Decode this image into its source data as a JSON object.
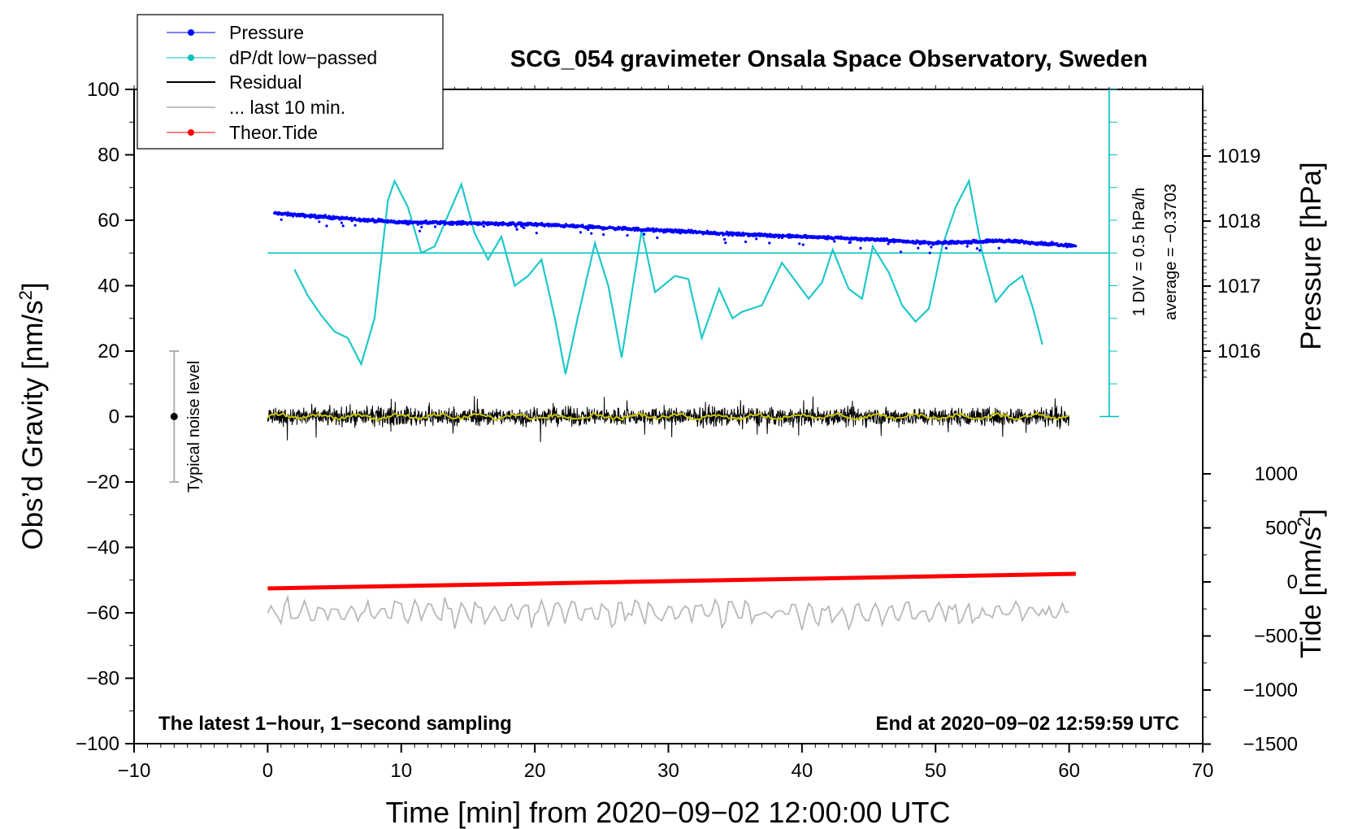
{
  "chart_data": {
    "type": "line",
    "title": "SCG_054 gravimeter Onsala Space Observatory, Sweden",
    "xlabel": "Time [min] from 2020−09−02 12:00:00 UTC",
    "ylabel": "Obs’d Gravity [nm/s",
    "ylabel_sup": "2",
    "ylabel_close": "]",
    "xlim": [
      -10,
      70
    ],
    "ylim": [
      -100,
      100
    ],
    "x_ticks": [
      "−10",
      "0",
      "10",
      "20",
      "30",
      "40",
      "50",
      "60",
      "70"
    ],
    "y_ticks": [
      "100",
      "80",
      "60",
      "40",
      "20",
      "0",
      "−20",
      "−40",
      "−60",
      "−80",
      "−100"
    ],
    "pressure_axis": {
      "label": "Pressure [hPa]",
      "ticks": [
        "1019",
        "1018",
        "1017",
        "1016"
      ],
      "tick_values": [
        1019,
        1018,
        1017,
        1016
      ]
    },
    "tide_axis": {
      "label": "Tide [nm/s",
      "label_sup": "2",
      "label_close": "]",
      "ticks": [
        "1000",
        "500",
        "0",
        "−500",
        "−1000",
        "−1500"
      ],
      "tick_values": [
        1000,
        500,
        0,
        -500,
        -1000,
        -1500
      ]
    },
    "dpdt_scale": {
      "div_label": "1 DIV = 0.5 hPa/h",
      "average_label": "average = −0.3703"
    },
    "noise_bar": {
      "label": "Typical noise level",
      "x": -7,
      "center": 0,
      "half_range": 20
    },
    "legend": [
      {
        "label": "Pressure",
        "color": "#0000ff",
        "marker": true
      },
      {
        "label": "dP/dt low−passed",
        "color": "#00c0c0",
        "marker": true
      },
      {
        "label": "Residual",
        "color": "#000000",
        "marker": false
      },
      {
        "label": "... last 10 min.",
        "color": "#c0c0c0",
        "marker": false
      },
      {
        "label": "Theor.Tide",
        "color": "#ff0000",
        "marker": true
      }
    ],
    "footer_left": "The latest 1−hour, 1−second sampling",
    "footer_right": "End at 2020−09−02 12:59:59 UTC",
    "series": [
      {
        "name": "Pressure",
        "axis": "hPa",
        "x": [
          0.5,
          5,
          10,
          15,
          20,
          25,
          30,
          35,
          40,
          45,
          50,
          55,
          60.5
        ],
        "values": [
          1018.12,
          1018.05,
          1017.98,
          1017.97,
          1017.95,
          1017.9,
          1017.85,
          1017.8,
          1017.76,
          1017.72,
          1017.66,
          1017.7,
          1017.62
        ]
      },
      {
        "name": "dP/dt low-passed",
        "axis": "gravity",
        "x": [
          2,
          3,
          4,
          5,
          6,
          7,
          8,
          9,
          9.5,
          10.5,
          11.5,
          12.5,
          14.5,
          15.5,
          16.5,
          17.5,
          18.5,
          19.5,
          20.5,
          21.5,
          22.3,
          23.2,
          24.5,
          25.5,
          26.5,
          28,
          29,
          30.5,
          31.5,
          32.5,
          33.8,
          34.8,
          35.5,
          37,
          38.5,
          40.5,
          41.5,
          42.3,
          43.5,
          44.5,
          45.3,
          46.5,
          47.5,
          48.5,
          49.5,
          50.5,
          51.5,
          52.5,
          53.5,
          54.5,
          55.5,
          56.5,
          57.3,
          58
        ],
        "values": [
          45,
          37,
          31,
          26,
          24,
          16,
          30,
          66,
          72,
          64,
          50,
          52,
          71,
          56,
          48,
          55,
          40,
          43,
          48,
          30,
          13,
          30,
          53,
          40,
          18,
          57,
          38,
          43,
          42,
          24,
          39,
          30,
          32,
          34,
          47,
          36,
          41,
          51,
          39,
          36,
          52,
          44,
          34,
          29,
          33,
          52,
          64,
          72,
          50,
          35,
          40,
          43,
          33,
          22
        ]
      },
      {
        "name": "Residual",
        "axis": "gravity",
        "x_range": [
          0,
          60
        ],
        "center": 0,
        "amplitude": 4.5
      },
      {
        "name": "... last 10 min.",
        "axis": "gravity",
        "x_range": [
          0,
          60
        ],
        "center": -60,
        "amplitude": 4
      },
      {
        "name": "Theor.Tide",
        "axis": "tide",
        "x": [
          0,
          60.5
        ],
        "values": [
          -60,
          75
        ]
      }
    ]
  }
}
